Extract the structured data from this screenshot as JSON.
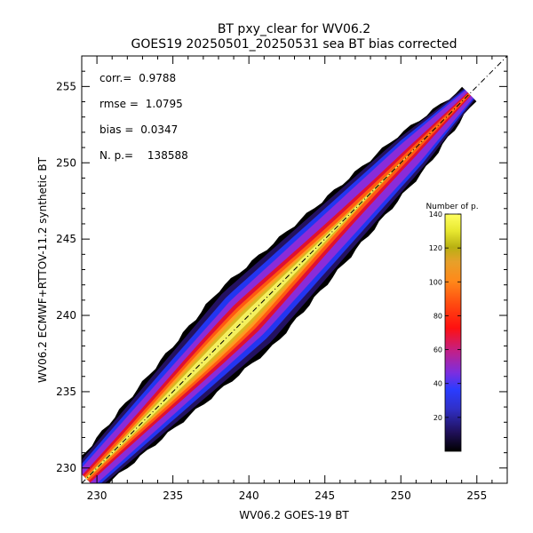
{
  "chart_data": {
    "type": "heatmap",
    "title": "BT pxy_clear for WV06.2",
    "subtitle": "GOES19 20250501_20250531 sea BT bias corrected",
    "xlabel": "WV06.2 GOES-19 BT",
    "ylabel": "WV06.2 ECMWF+RTTOV-11.2 synthetic BT",
    "xlim": [
      229,
      257
    ],
    "ylim": [
      229,
      257
    ],
    "xticks": [
      230,
      235,
      240,
      245,
      250,
      255
    ],
    "yticks": [
      230,
      235,
      240,
      245,
      250,
      255
    ],
    "grid": false,
    "reference_line": "y = x (dash-dot)",
    "density": {
      "centerline_start": [
        229.3,
        229.3
      ],
      "centerline_end": [
        254.5,
        254.5
      ],
      "peak_near": [
        238.5,
        238.5
      ],
      "peak_count": 140
    },
    "stats": [
      {
        "label": "corr.=",
        "value": "0.9788"
      },
      {
        "label": "rmse =",
        "value": "1.0795"
      },
      {
        "label": "bias =",
        "value": "0.0347"
      },
      {
        "label": "N. p.=",
        "value": "138588"
      }
    ],
    "colorbar": {
      "title": "Number of p.",
      "min": 0,
      "max": 140,
      "ticks": [
        20,
        40,
        60,
        80,
        100,
        120,
        140
      ],
      "colormap": "black-purple-blue-red-orange-yellow"
    }
  }
}
